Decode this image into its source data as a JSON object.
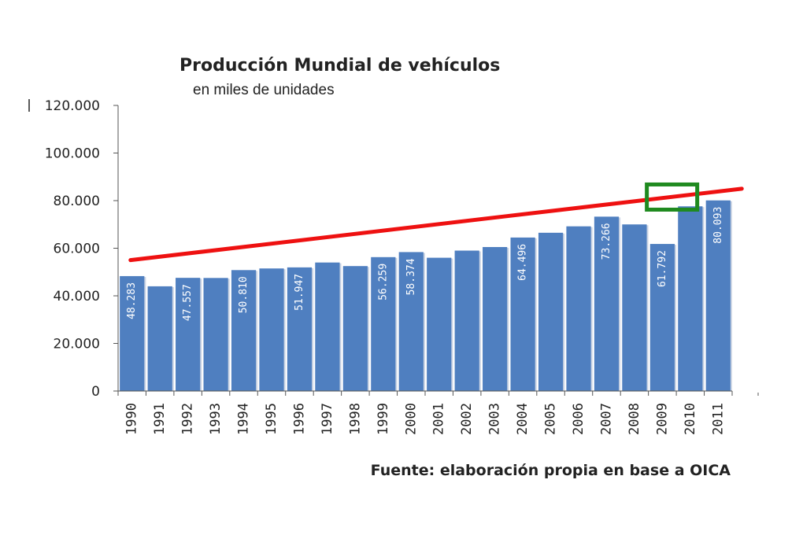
{
  "chart_data": {
    "type": "bar",
    "title": "Producción Mundial de vehículos",
    "subtitle": "en miles de unidades",
    "source": "Fuente: elaboración propia en base a OICA",
    "categories": [
      "1990",
      "1991",
      "1992",
      "1993",
      "1994",
      "1995",
      "1996",
      "1997",
      "1998",
      "1999",
      "2000",
      "2001",
      "2002",
      "2003",
      "2004",
      "2005",
      "2006",
      "2007",
      "2008",
      "2009",
      "2010",
      "2011"
    ],
    "values": [
      48283,
      44000,
      47557,
      47500,
      50810,
      51500,
      51947,
      54000,
      52500,
      56259,
      58374,
      56000,
      59000,
      60500,
      64496,
      66500,
      69200,
      73266,
      70000,
      61792,
      77600,
      80093
    ],
    "data_labels": [
      "48.283",
      "",
      "47.557",
      "",
      "50.810",
      "",
      "51.947",
      "",
      "",
      "56.259",
      "58.374",
      "",
      "",
      "",
      "64.496",
      "",
      "",
      "73.266",
      "",
      "61.792",
      "",
      "80.093"
    ],
    "ylim": [
      0,
      120000
    ],
    "yticks": [
      0,
      20000,
      40000,
      60000,
      80000,
      100000,
      120000
    ],
    "ytick_labels": [
      "0",
      "20.000",
      "40.000",
      "60.000",
      "80.000",
      "100.000",
      "120.000"
    ],
    "trend_line": {
      "start": 55000,
      "end": 85000,
      "color": "#ee1111"
    },
    "highlight": {
      "category": "2009",
      "at_value": 81500,
      "color": "#1f8a1f"
    },
    "bar_color": "#4f7fc0",
    "xlabel": "",
    "ylabel": "",
    "grid": false,
    "legend": "none"
  }
}
